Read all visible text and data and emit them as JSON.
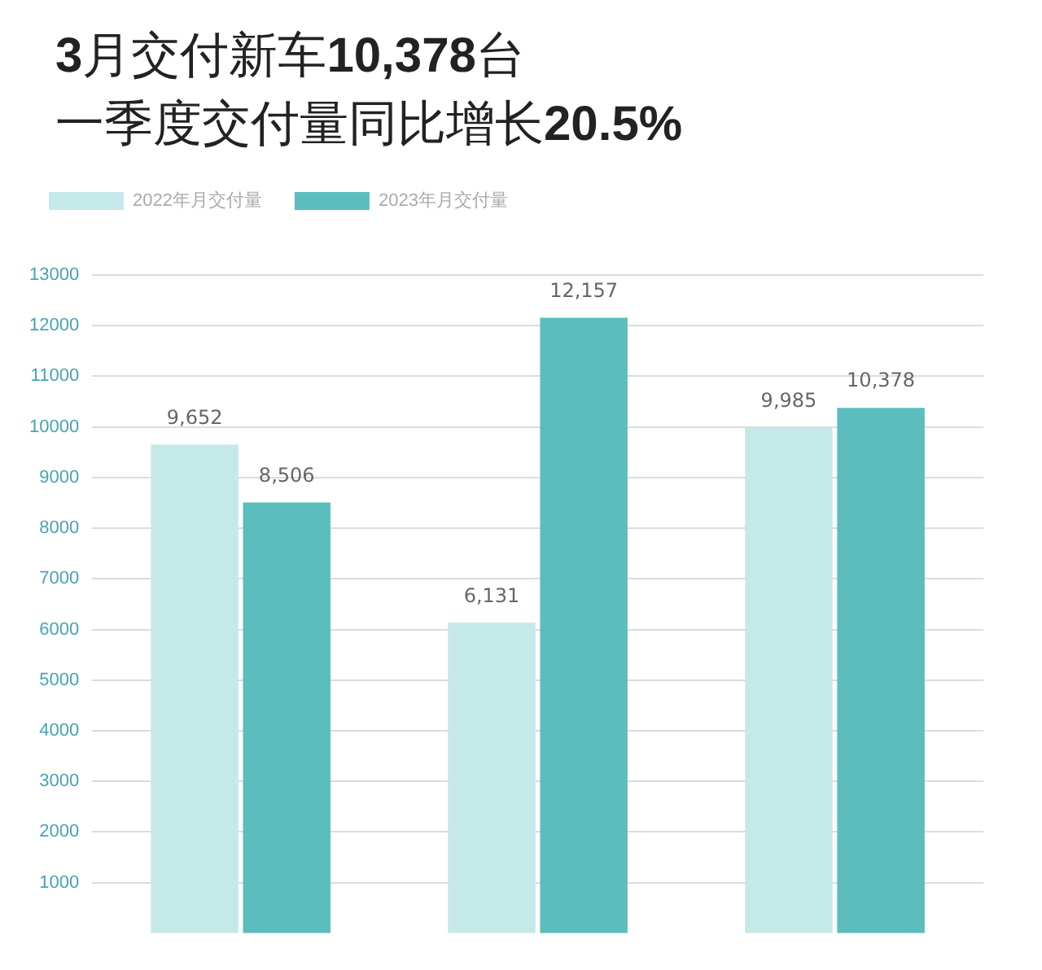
{
  "chart_data": {
    "type": "bar",
    "title": "3月交付新车10,378台",
    "subtitle": "一季度交付量同比增长20.5%",
    "categories": [
      null,
      null,
      null
    ],
    "series": [
      {
        "name": "2022年月交付量",
        "color": "#c5e8e8",
        "values": [
          9652,
          6131,
          9985
        ],
        "value_labels": [
          "9,652",
          "6,131",
          "9,985"
        ]
      },
      {
        "name": "2023年月交付量",
        "color": "#5bbdbd",
        "values": [
          8506,
          12157,
          10378
        ],
        "value_labels": [
          "8,506",
          "12,157",
          "10,378"
        ]
      }
    ],
    "ylim": [
      0,
      13000
    ],
    "yticks": [
      1000,
      2000,
      3000,
      4000,
      5000,
      6000,
      7000,
      8000,
      9000,
      10000,
      11000,
      12000,
      13000
    ],
    "grid": "y",
    "legend": "top left",
    "tick_labels": "y"
  }
}
